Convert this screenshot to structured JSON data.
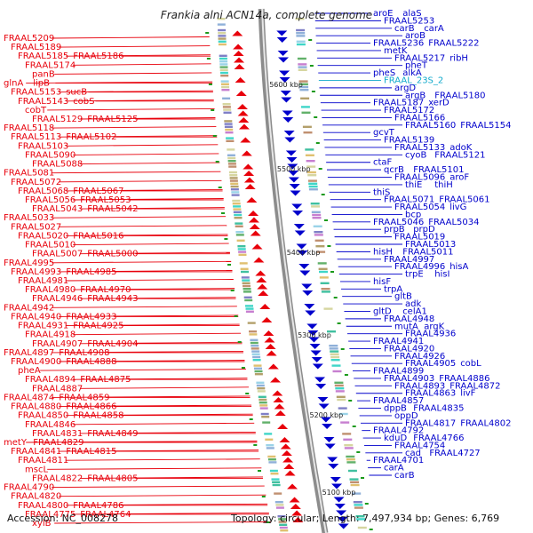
{
  "title": "Frankia alni ACN14a, complete genome",
  "footer": {
    "accession": "Accession: NC_008278",
    "stats": "Topology: circular; Length: 7,497,934 bp; Genes: 6,769"
  },
  "colors": {
    "reverse": "#e8000b",
    "forward": "#0000cc",
    "rna": "#11aacc",
    "backbone": "#8c8c8c",
    "tick": "#1a9a1a"
  },
  "ticks": [
    "5600 kbp",
    "5500 kbp",
    "5400 kbp",
    "5300 kbp",
    "5200 kbp",
    "5100 kbp"
  ],
  "left_labels": [
    "FRAAL5209",
    "FRAAL5189",
    "FRAAL5185",
    "FRAAL5186",
    "FRAAL5174",
    "panB",
    "glnA",
    "lipB",
    "FRAAL5153",
    "sucB",
    "FRAAL5143",
    "cobS",
    "cobT",
    "FRAAL5129",
    "FRAAL5125",
    "FRAAL5118",
    "FRAAL5113",
    "FRAAL5102",
    "FRAAL5103",
    "FRAAL5090",
    "FRAAL5088",
    "FRAAL5081",
    "FRAAL5072",
    "FRAAL5068",
    "FRAAL5067",
    "FRAAL5056",
    "FRAAL5053",
    "FRAAL5043",
    "FRAAL5042",
    "FRAAL5033",
    "FRAAL5027",
    "FRAAL5020",
    "FRAAL5016",
    "FRAAL5010",
    "FRAAL5007",
    "FRAAL5000",
    "FRAAL4995",
    "FRAAL4993",
    "FRAAL4985",
    "FRAAL4981",
    "FRAAL4980",
    "FRAAL4970",
    "FRAAL4946",
    "FRAAL4943",
    "FRAAL4942",
    "FRAAL4940",
    "FRAAL4933",
    "FRAAL4931",
    "FRAAL4925",
    "FRAAL4918",
    "FRAAL4907",
    "FRAAL4904",
    "FRAAL4897",
    "FRAAL4908",
    "FRAAL4900",
    "FRAAL4888",
    "pheA",
    "FRAAL4894",
    "FRAAL4875",
    "FRAAL4887",
    "FRAAL4874",
    "FRAAL4859",
    "FRAAL4880",
    "FRAAL4866",
    "FRAAL4850",
    "FRAAL4858",
    "FRAAL4846",
    "FRAAL4831",
    "FRAAL4849",
    "metY",
    "FRAAL4829",
    "FRAAL4841",
    "FRAAL4815",
    "FRAAL4811",
    "mscL",
    "FRAAL4822",
    "FRAAL4805",
    "FRAAL4790",
    "FRAAL4820",
    "FRAAL4800",
    "FRAAL4786",
    "FRAAL4775",
    "FRAAL4764",
    "xylB"
  ],
  "right_labels": [
    "aroE",
    "alaS",
    "FRAAL5253",
    "carB",
    "carA",
    "aroB",
    "FRAAL5236",
    "FRAAL5222",
    "metK",
    "FRAAL5217",
    "ribH",
    "pheT",
    "pheS",
    "alkA",
    "FRAAL_23S_2",
    "argD",
    "argB",
    "FRAAL5180",
    "FRAAL5187",
    "xerD",
    "FRAAL5172",
    "FRAAL5166",
    "FRAAL5160",
    "FRAAL5154",
    "gcvT",
    "FRAAL5139",
    "FRAAL5133",
    "adoK",
    "cyoB",
    "FRAAL5121",
    "ctaF",
    "qcrB",
    "FRAAL5101",
    "FRAAL5096",
    "aroF",
    "thiE",
    "thiH",
    "thiS",
    "FRAAL5071",
    "FRAAL5061",
    "FRAAL5054",
    "livG",
    "bcp",
    "FRAAL5046",
    "FRAAL5034",
    "prpB",
    "prpD",
    "FRAAL5019",
    "FRAAL5013",
    "hisH",
    "FRAAL5011",
    "FRAAL4997",
    "FRAAL4996",
    "hisA",
    "trpE",
    "hisI",
    "hisF",
    "trpA",
    "gltB",
    "adk",
    "gltD",
    "celA1",
    "FRAAL4948",
    "mutA",
    "argK",
    "FRAAL4936",
    "FRAAL4941",
    "FRAAL4920",
    "FRAAL4926",
    "FRAAL4905",
    "cobL",
    "FRAAL4899",
    "FRAAL4903",
    "FRAAL4886",
    "FRAAL4893",
    "FRAAL4872",
    "FRAAL4863",
    "livF",
    "FRAAL4857",
    "dppB",
    "FRAAL4835",
    "oppD",
    "FRAAL4817",
    "FRAAL4802",
    "FRAAL4792",
    "kduD",
    "FRAAL4766",
    "FRAAL4754",
    "cad",
    "FRAAL4727",
    "FRAAL4701",
    "carA",
    "carB"
  ]
}
